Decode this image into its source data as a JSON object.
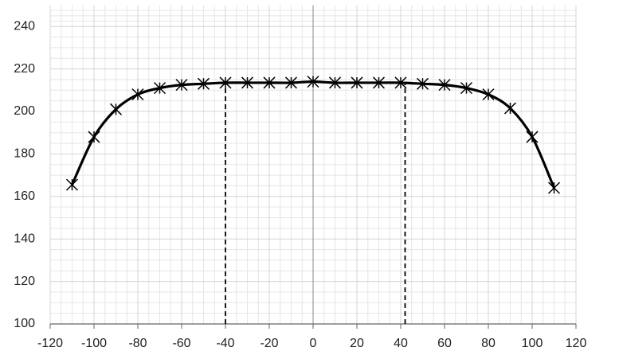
{
  "chart_data": {
    "type": "line",
    "x": [
      -110,
      -100,
      -90,
      -80,
      -70,
      -60,
      -50,
      -40,
      -30,
      -20,
      -10,
      0,
      10,
      20,
      30,
      40,
      50,
      60,
      70,
      80,
      90,
      100,
      110
    ],
    "values": [
      165.5,
      188,
      201,
      208,
      211,
      212.5,
      213,
      213.5,
      213.5,
      213.5,
      213.5,
      214,
      213.5,
      213.5,
      213.5,
      213.5,
      213,
      212.5,
      211,
      208,
      201.5,
      188,
      164
    ],
    "color": "#000000",
    "xlim": [
      -120,
      120
    ],
    "xticks": [
      -120,
      -100,
      -80,
      -60,
      -40,
      -20,
      0,
      20,
      40,
      60,
      80,
      100,
      120
    ],
    "ylim": [
      100,
      250
    ],
    "yticks": [
      100,
      120,
      140,
      160,
      180,
      200,
      220,
      240
    ],
    "grid": true,
    "reference_lines": [
      {
        "x": -40,
        "y": 213.5
      },
      {
        "x": 42,
        "y": 213.5
      }
    ]
  }
}
